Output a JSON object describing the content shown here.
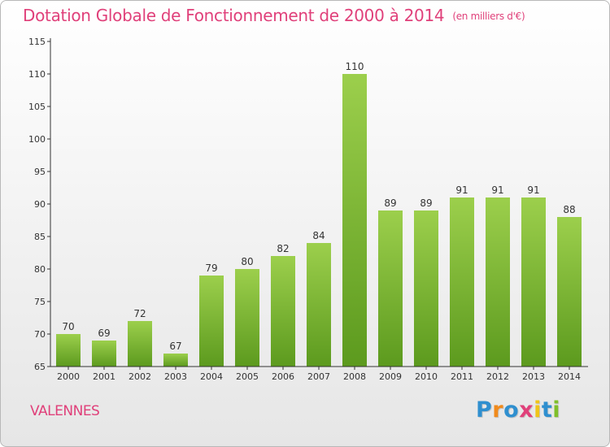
{
  "chart_data": {
    "type": "bar",
    "title": "Dotation Globale de Fonctionnement de 2000 à 2014",
    "subtitle": "(en milliers d'€)",
    "categories": [
      "2000",
      "2001",
      "2002",
      "2003",
      "2004",
      "2005",
      "2006",
      "2007",
      "2008",
      "2009",
      "2010",
      "2011",
      "2012",
      "2013",
      "2014"
    ],
    "values": [
      70,
      69,
      72,
      67,
      79,
      80,
      82,
      84,
      110,
      89,
      89,
      91,
      91,
      91,
      88
    ],
    "xlabel": "",
    "ylabel": "",
    "ylim": [
      65,
      115
    ],
    "yticks": [
      65,
      70,
      75,
      80,
      85,
      90,
      95,
      100,
      105,
      110,
      115
    ],
    "grid": false,
    "bar_color_top": "#9ccf4c",
    "bar_color_bottom": "#5c9a1e"
  },
  "footer": {
    "commune": "VALENNES",
    "logo": [
      {
        "char": "P",
        "color": "#2f8fcf"
      },
      {
        "char": "r",
        "color": "#f08a1c"
      },
      {
        "char": "o",
        "color": "#2f8fcf"
      },
      {
        "char": "x",
        "color": "#e0407a"
      },
      {
        "char": "i",
        "color": "#f0c419"
      },
      {
        "char": "t",
        "color": "#2f8fcf"
      },
      {
        "char": "i",
        "color": "#7fbf2a"
      }
    ]
  },
  "colors": {
    "title": "#e0407a",
    "axis": "#333333"
  }
}
